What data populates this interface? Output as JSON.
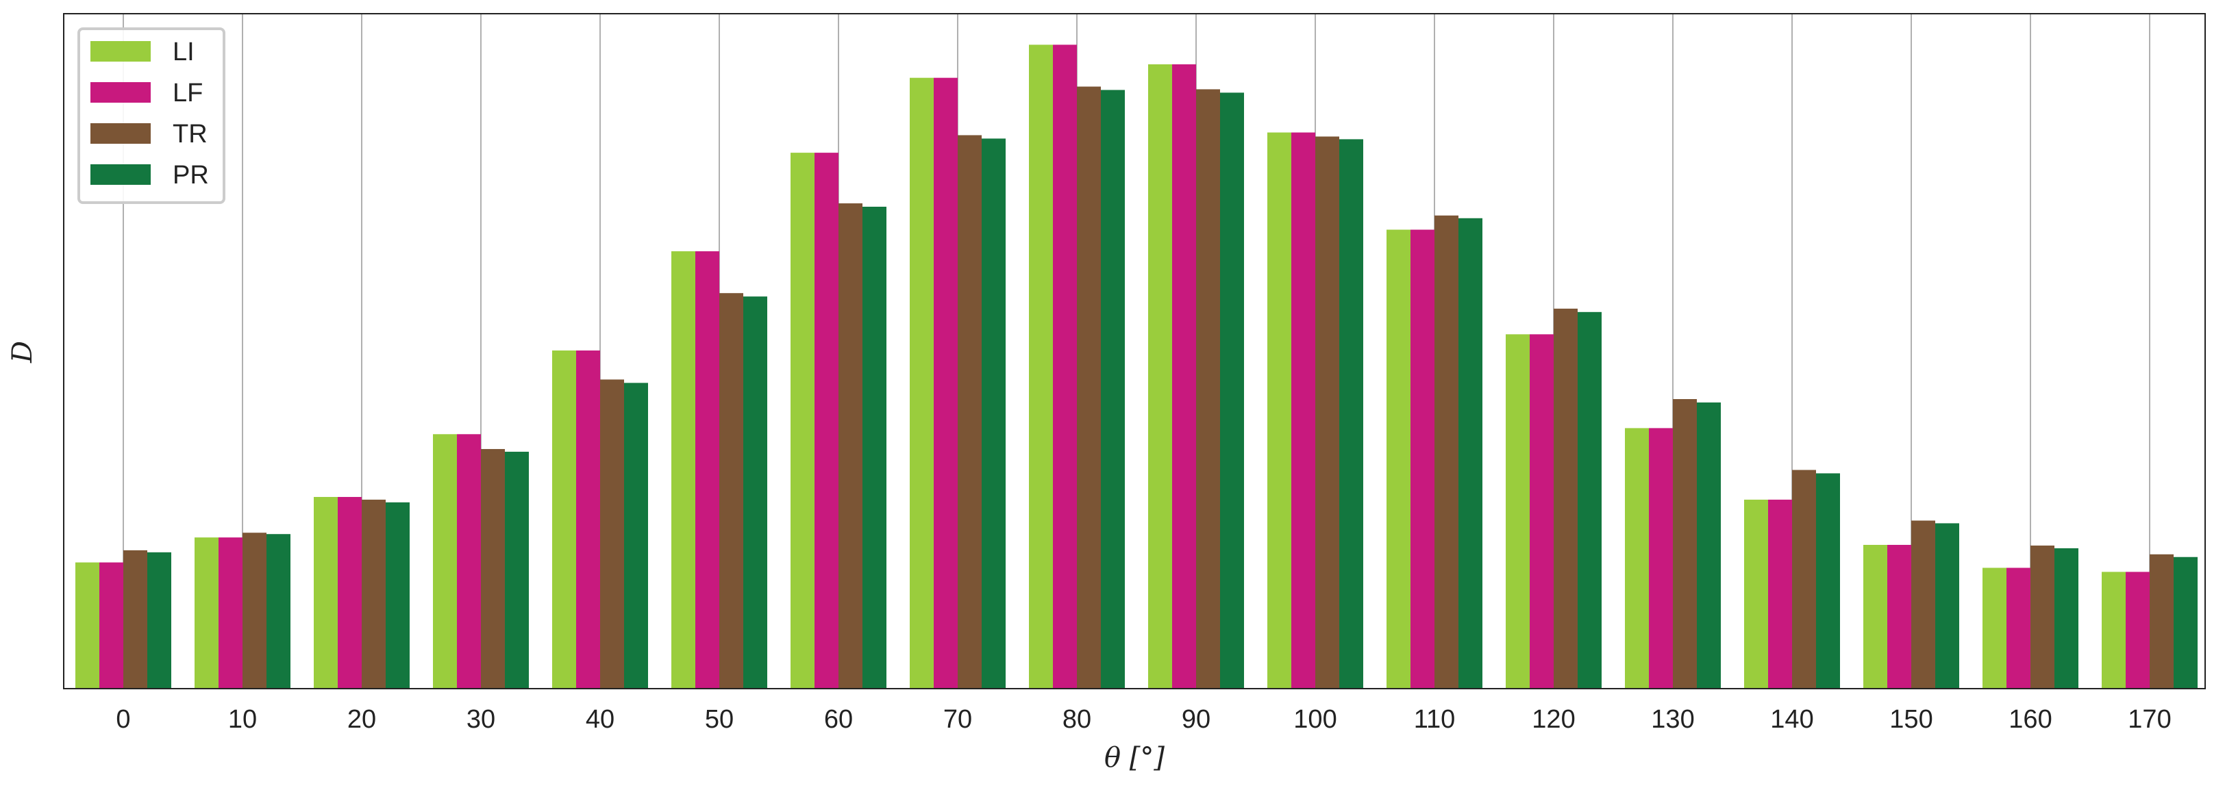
{
  "chart_data": {
    "type": "bar",
    "title": "",
    "xlabel": "θ [°]",
    "ylabel": "D",
    "categories": [
      "0",
      "10",
      "20",
      "30",
      "40",
      "50",
      "60",
      "70",
      "80",
      "90",
      "100",
      "110",
      "120",
      "130",
      "140",
      "150",
      "160",
      "170"
    ],
    "ylim": [
      0,
      100
    ],
    "y_ticks_visible": false,
    "grid": "vertical",
    "legend_placement": "top-left",
    "series": [
      {
        "name": "LI",
        "color": "#9acd3d",
        "values": [
          18.7,
          22.4,
          28.4,
          37.7,
          50.1,
          64.8,
          79.4,
          90.5,
          95.4,
          92.5,
          82.4,
          68.0,
          52.5,
          38.6,
          28.0,
          21.3,
          17.9,
          17.3
        ]
      },
      {
        "name": "LF",
        "color": "#c8197e",
        "values": [
          18.7,
          22.4,
          28.4,
          37.7,
          50.1,
          64.8,
          79.4,
          90.5,
          95.4,
          92.5,
          82.4,
          68.0,
          52.5,
          38.6,
          28.0,
          21.3,
          17.9,
          17.3
        ]
      },
      {
        "name": "TR",
        "color": "#7b5535",
        "values": [
          20.5,
          23.1,
          28.0,
          35.5,
          45.8,
          58.6,
          71.9,
          82.0,
          89.2,
          88.8,
          81.8,
          70.1,
          56.3,
          42.9,
          32.4,
          24.9,
          21.2,
          19.9
        ]
      },
      {
        "name": "PR",
        "color": "#13773f",
        "values": [
          20.2,
          22.9,
          27.6,
          35.1,
          45.3,
          58.1,
          71.4,
          81.5,
          88.7,
          88.3,
          81.4,
          69.7,
          55.8,
          42.4,
          31.9,
          24.5,
          20.8,
          19.5
        ]
      }
    ]
  }
}
